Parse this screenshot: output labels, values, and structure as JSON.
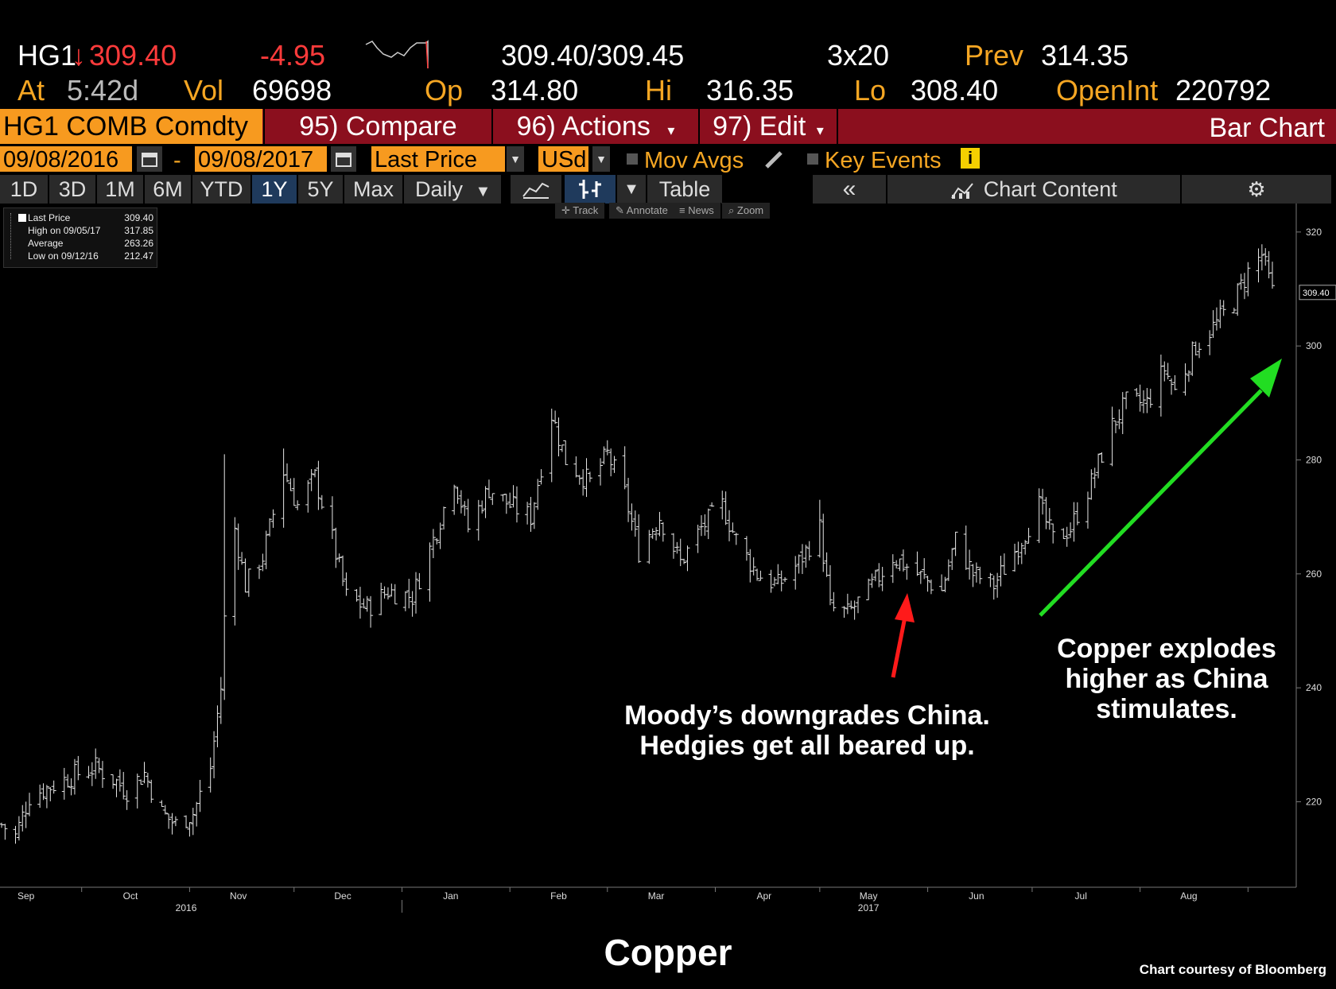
{
  "quote": {
    "ticker": "HG1",
    "arrow": "↓",
    "last": "309.40",
    "change": "-4.95",
    "bid_ask": "309.40/309.45",
    "size": "3x20",
    "prev_label": "Prev",
    "prev": "314.35",
    "at_label": "At",
    "time": "5:42d",
    "vol_label": "Vol",
    "vol": "69698",
    "open_label": "Op",
    "open": "314.80",
    "hi_label": "Hi",
    "hi": "316.35",
    "lo_label": "Lo",
    "lo": "308.40",
    "oi_label": "OpenInt",
    "oi": "220792"
  },
  "commandbar": {
    "security": "HG1 COMB Comdty",
    "compare": "95) Compare",
    "actions": "96) Actions",
    "edit": "97) Edit",
    "title": "Bar Chart"
  },
  "datebar": {
    "start": "09/08/2016",
    "separator": "-",
    "end": "09/08/2017",
    "field": "Last Price",
    "currency": "USd",
    "mov_avgs": "Mov Avgs",
    "key_events": "Key Events"
  },
  "rangebar": {
    "ranges": [
      "1D",
      "3D",
      "1M",
      "6M",
      "YTD",
      "1Y",
      "5Y",
      "Max"
    ],
    "active": "1Y",
    "period": "Daily",
    "table": "Table",
    "chart_content": "Chart Content"
  },
  "chart_tools": [
    "Track",
    "Annotate",
    "News",
    "Zoom"
  ],
  "legend": {
    "rows": [
      {
        "name": "Last Price",
        "value": "309.40"
      },
      {
        "name": "High on 09/05/17",
        "value": "317.85"
      },
      {
        "name": "Average",
        "value": "263.26"
      },
      {
        "name": "Low on 09/12/16",
        "value": "212.47"
      }
    ]
  },
  "annotations": {
    "moodys": [
      "Moody’s downgrades China.",
      "Hedgies get all beared up."
    ],
    "copper": [
      "Copper explodes",
      "higher as China",
      "stimulates."
    ]
  },
  "colors": {
    "moodys_arrow": "#ff1a1a",
    "copper_arrow": "#22dd22",
    "last_price_orange": "#f79a1f",
    "command_bar": "#8b0f1e"
  },
  "footer": {
    "title": "Copper",
    "credit": "Chart courtesy of Bloomberg"
  },
  "chart_data": {
    "type": "bar",
    "subtype": "ohlc",
    "series_name": "Last Price",
    "ylim": [
      205,
      325
    ],
    "yticks": [
      220,
      240,
      260,
      280,
      300,
      320
    ],
    "last_label": "309.40",
    "xlim": [
      "2016-09-08",
      "2017-09-08"
    ],
    "month_ticks": [
      {
        "label": "Sep",
        "date": "2016-09-15"
      },
      {
        "label": "Oct",
        "date": "2016-10-15"
      },
      {
        "label": "Nov",
        "date": "2016-11-15"
      },
      {
        "label": "Dec",
        "date": "2016-12-15"
      },
      {
        "label": "Jan",
        "date": "2017-01-15"
      },
      {
        "label": "Feb",
        "date": "2017-02-15"
      },
      {
        "label": "Mar",
        "date": "2017-03-15"
      },
      {
        "label": "Apr",
        "date": "2017-04-15"
      },
      {
        "label": "May",
        "date": "2017-05-15"
      },
      {
        "label": "Jun",
        "date": "2017-06-15"
      },
      {
        "label": "Jul",
        "date": "2017-07-15"
      },
      {
        "label": "Aug",
        "date": "2017-08-15"
      }
    ],
    "year_ticks": [
      {
        "label": "2016",
        "date": "2016-10-31"
      },
      {
        "label": "2017",
        "date": "2017-05-15"
      }
    ],
    "close_points": [
      {
        "x": "2016-09-08",
        "y": 216
      },
      {
        "x": "2016-09-12",
        "y": 214
      },
      {
        "x": "2016-09-16",
        "y": 221
      },
      {
        "x": "2016-09-23",
        "y": 223
      },
      {
        "x": "2016-09-30",
        "y": 225
      },
      {
        "x": "2016-10-05",
        "y": 226
      },
      {
        "x": "2016-10-10",
        "y": 224
      },
      {
        "x": "2016-10-14",
        "y": 222
      },
      {
        "x": "2016-10-19",
        "y": 225
      },
      {
        "x": "2016-10-24",
        "y": 218
      },
      {
        "x": "2016-10-28",
        "y": 216
      },
      {
        "x": "2016-11-02",
        "y": 218
      },
      {
        "x": "2016-11-07",
        "y": 226
      },
      {
        "x": "2016-11-10",
        "y": 240
      },
      {
        "x": "2016-11-11",
        "y": 252
      },
      {
        "x": "2016-11-14",
        "y": 268
      },
      {
        "x": "2016-11-17",
        "y": 258
      },
      {
        "x": "2016-11-22",
        "y": 263
      },
      {
        "x": "2016-11-28",
        "y": 278
      },
      {
        "x": "2016-12-02",
        "y": 272
      },
      {
        "x": "2016-12-07",
        "y": 277
      },
      {
        "x": "2016-12-12",
        "y": 266
      },
      {
        "x": "2016-12-16",
        "y": 256
      },
      {
        "x": "2016-12-22",
        "y": 254
      },
      {
        "x": "2016-12-28",
        "y": 257
      },
      {
        "x": "2017-01-04",
        "y": 256
      },
      {
        "x": "2017-01-10",
        "y": 266
      },
      {
        "x": "2017-01-16",
        "y": 277
      },
      {
        "x": "2017-01-20",
        "y": 268
      },
      {
        "x": "2017-01-26",
        "y": 275
      },
      {
        "x": "2017-02-01",
        "y": 272
      },
      {
        "x": "2017-02-07",
        "y": 270
      },
      {
        "x": "2017-02-13",
        "y": 288
      },
      {
        "x": "2017-02-17",
        "y": 280
      },
      {
        "x": "2017-02-24",
        "y": 276
      },
      {
        "x": "2017-03-01",
        "y": 281
      },
      {
        "x": "2017-03-06",
        "y": 274
      },
      {
        "x": "2017-03-10",
        "y": 264
      },
      {
        "x": "2017-03-16",
        "y": 270
      },
      {
        "x": "2017-03-22",
        "y": 262
      },
      {
        "x": "2017-03-28",
        "y": 268
      },
      {
        "x": "2017-04-03",
        "y": 272
      },
      {
        "x": "2017-04-07",
        "y": 266
      },
      {
        "x": "2017-04-13",
        "y": 260
      },
      {
        "x": "2017-04-19",
        "y": 258
      },
      {
        "x": "2017-04-25",
        "y": 262
      },
      {
        "x": "2017-05-01",
        "y": 268
      },
      {
        "x": "2017-05-04",
        "y": 254
      },
      {
        "x": "2017-05-09",
        "y": 253
      },
      {
        "x": "2017-05-15",
        "y": 257
      },
      {
        "x": "2017-05-22",
        "y": 263
      },
      {
        "x": "2017-05-29",
        "y": 260
      },
      {
        "x": "2017-06-05",
        "y": 257
      },
      {
        "x": "2017-06-09",
        "y": 266
      },
      {
        "x": "2017-06-14",
        "y": 260
      },
      {
        "x": "2017-06-20",
        "y": 258
      },
      {
        "x": "2017-06-27",
        "y": 265
      },
      {
        "x": "2017-07-03",
        "y": 272
      },
      {
        "x": "2017-07-07",
        "y": 266
      },
      {
        "x": "2017-07-12",
        "y": 268
      },
      {
        "x": "2017-07-18",
        "y": 276
      },
      {
        "x": "2017-07-24",
        "y": 286
      },
      {
        "x": "2017-07-28",
        "y": 290
      },
      {
        "x": "2017-08-03",
        "y": 290
      },
      {
        "x": "2017-08-08",
        "y": 296
      },
      {
        "x": "2017-08-11",
        "y": 292
      },
      {
        "x": "2017-08-17",
        "y": 300
      },
      {
        "x": "2017-08-23",
        "y": 304
      },
      {
        "x": "2017-08-28",
        "y": 308
      },
      {
        "x": "2017-09-01",
        "y": 313
      },
      {
        "x": "2017-09-05",
        "y": 316
      },
      {
        "x": "2017-09-08",
        "y": 309.4
      }
    ],
    "spikes": [
      {
        "x": "2016-11-11",
        "high": 281
      },
      {
        "x": "2016-11-28",
        "high": 282
      },
      {
        "x": "2017-02-13",
        "high": 289
      },
      {
        "x": "2017-05-01",
        "high": 273
      },
      {
        "x": "2017-09-05",
        "high": 317.85
      }
    ]
  }
}
